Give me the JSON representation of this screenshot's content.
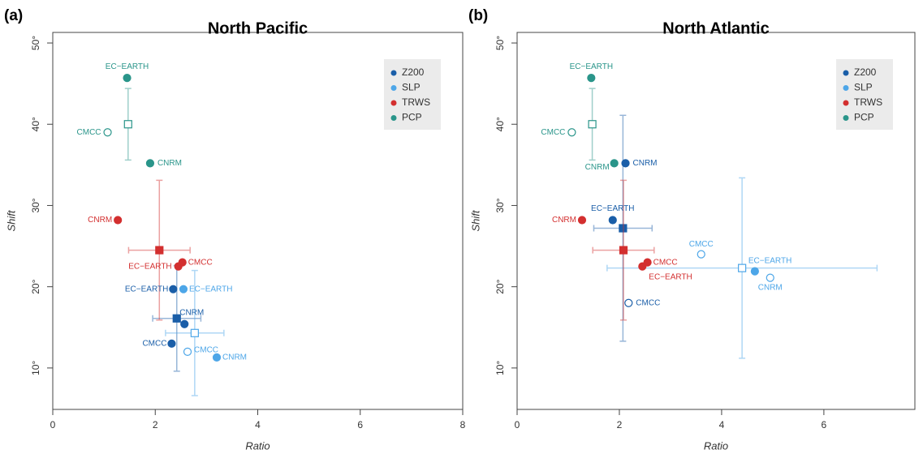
{
  "chart_data": [
    {
      "type": "scatter",
      "panel_label": "(a)",
      "title": "North Pacific",
      "x_label": "Ratio",
      "y_label": "Shift",
      "xlim": [
        0,
        8
      ],
      "ylim": [
        4.9,
        51.3
      ],
      "xticks": [
        0,
        2,
        4,
        6,
        8
      ],
      "yticks": [
        {
          "value": 10,
          "label": "10°"
        },
        {
          "value": 20,
          "label": "20°"
        },
        {
          "value": 30,
          "label": "30°"
        },
        {
          "value": 40,
          "label": "40°"
        },
        {
          "value": 50,
          "label": "50°"
        }
      ],
      "legend": "upper right",
      "series": [
        {
          "name": "Z200",
          "color": "#1a5ea8",
          "models": [
            "EC−EARTH",
            "CNRM",
            "CMCC"
          ],
          "x": [
            2.35,
            2.57,
            2.32
          ],
          "y": [
            19.7,
            15.4,
            13.0
          ],
          "filled": [
            true,
            true,
            true
          ],
          "mean_x": 2.42,
          "mean_y": 16.1,
          "xerr": 0.47,
          "yerr": 6.5,
          "mean_filled": true
        },
        {
          "name": "SLP",
          "color": "#4da6e8",
          "models": [
            "EC−EARTH",
            "CNRM",
            "CMCC"
          ],
          "x": [
            2.55,
            3.2,
            2.63
          ],
          "y": [
            19.7,
            11.3,
            12.0
          ],
          "filled": [
            true,
            true,
            false
          ],
          "mean_x": 2.77,
          "mean_y": 14.3,
          "xerr": 0.57,
          "yerr": 7.7,
          "mean_filled": false
        },
        {
          "name": "TRWS",
          "color": "#d32f2f",
          "models": [
            "EC−EARTH",
            "CNRM",
            "CMCC"
          ],
          "x": [
            2.45,
            1.27,
            2.53
          ],
          "y": [
            22.5,
            28.2,
            23.0
          ],
          "filled": [
            true,
            true,
            true
          ],
          "mean_x": 2.08,
          "mean_y": 24.5,
          "xerr": 0.6,
          "yerr": 8.6,
          "mean_filled": true
        },
        {
          "name": "PCP",
          "color": "#2a958a",
          "models": [
            "EC−EARTH",
            "CNRM",
            "CMCC"
          ],
          "x": [
            1.45,
            1.9,
            1.07
          ],
          "y": [
            45.7,
            35.2,
            39.0
          ],
          "filled": [
            true,
            true,
            false
          ],
          "mean_x": 1.47,
          "mean_y": 40.0,
          "xerr": 0,
          "yerr": 4.4,
          "mean_filled": false
        }
      ]
    },
    {
      "type": "scatter",
      "panel_label": "(b)",
      "title": "North Atlantic",
      "x_label": "Ratio",
      "y_label": "Shift",
      "xlim": [
        0,
        7.78
      ],
      "ylim": [
        4.9,
        51.3
      ],
      "xticks": [
        0,
        2,
        4,
        6
      ],
      "yticks": [
        {
          "value": 10,
          "label": "10°"
        },
        {
          "value": 20,
          "label": "20°"
        },
        {
          "value": 30,
          "label": "30°"
        },
        {
          "value": 40,
          "label": "40°"
        },
        {
          "value": 50,
          "label": "50°"
        }
      ],
      "legend": "upper right",
      "series": [
        {
          "name": "Z200",
          "color": "#1a5ea8",
          "models": [
            "EC−EARTH",
            "CNRM",
            "CMCC"
          ],
          "x": [
            1.87,
            2.12,
            2.18
          ],
          "y": [
            28.2,
            35.2,
            18.0
          ],
          "filled": [
            true,
            true,
            false
          ],
          "mean_x": 2.07,
          "mean_y": 27.2,
          "xerr": 0.57,
          "yerr": 13.9,
          "mean_filled": true
        },
        {
          "name": "SLP",
          "color": "#4da6e8",
          "models": [
            "EC−EARTH",
            "CNRM",
            "CMCC"
          ],
          "x": [
            4.65,
            4.95,
            3.6
          ],
          "y": [
            21.9,
            21.1,
            24.0
          ],
          "filled": [
            true,
            false,
            false
          ],
          "mean_x": 4.4,
          "mean_y": 22.3,
          "xerr": 2.64,
          "yerr": 11.1,
          "mean_filled": false
        },
        {
          "name": "TRWS",
          "color": "#d32f2f",
          "models": [
            "EC−EARTH",
            "CNRM",
            "CMCC"
          ],
          "x": [
            2.45,
            1.27,
            2.55
          ],
          "y": [
            22.5,
            28.2,
            23.0
          ],
          "filled": [
            true,
            true,
            true
          ],
          "mean_x": 2.08,
          "mean_y": 24.5,
          "xerr": 0.6,
          "yerr": 8.6,
          "mean_filled": true
        },
        {
          "name": "PCP",
          "color": "#2a958a",
          "models": [
            "EC−EARTH",
            "CNRM",
            "CMCC"
          ],
          "x": [
            1.45,
            1.9,
            1.07
          ],
          "y": [
            45.7,
            35.2,
            39.0
          ],
          "filled": [
            true,
            true,
            false
          ],
          "mean_x": 1.47,
          "mean_y": 40.0,
          "xerr": 0,
          "yerr": 4.4,
          "mean_filled": false
        }
      ]
    }
  ]
}
